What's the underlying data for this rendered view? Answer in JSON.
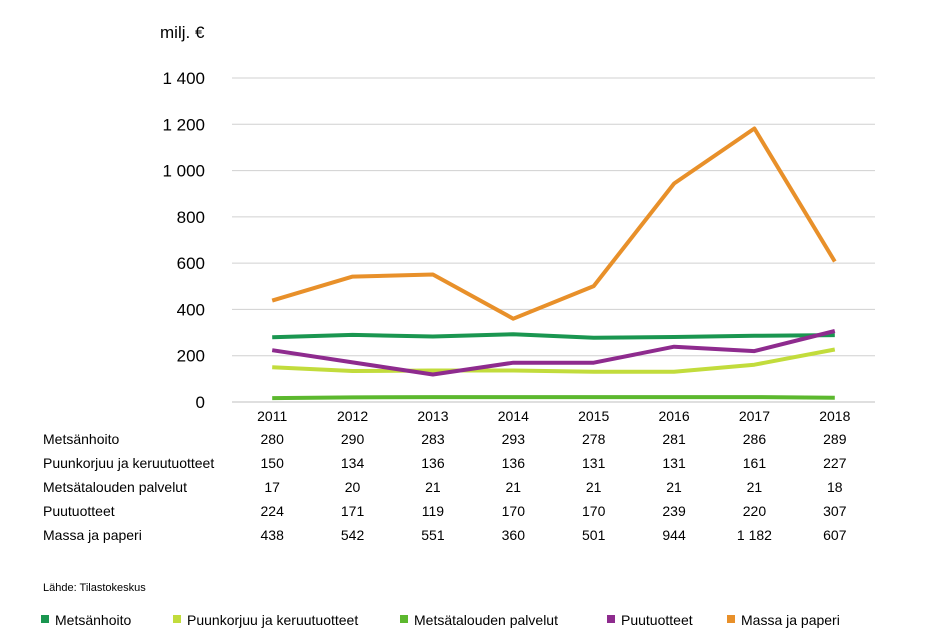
{
  "chart_data": {
    "type": "line",
    "ylabel": "milj. €",
    "ylim": [
      0,
      1400
    ],
    "yticks": [
      0,
      200,
      400,
      600,
      800,
      1000,
      1200,
      1400
    ],
    "ytick_labels": [
      "0",
      "200",
      "400",
      "600",
      "800",
      "1 000",
      "1 200",
      "1 400"
    ],
    "grid": true,
    "legend": "bottom",
    "categories": [
      "2011",
      "2012",
      "2013",
      "2014",
      "2015",
      "2016",
      "2017",
      "2018"
    ],
    "series": [
      {
        "name": "Metsänhoito",
        "color": "#1a9650",
        "values": [
          280,
          290,
          283,
          293,
          278,
          281,
          286,
          289
        ],
        "labels": [
          "280",
          "290",
          "283",
          "293",
          "278",
          "281",
          "286",
          "289"
        ]
      },
      {
        "name": "Puunkorjuu ja keruutuotteet",
        "color": "#c2dc3c",
        "values": [
          150,
          134,
          136,
          136,
          131,
          131,
          161,
          227
        ],
        "labels": [
          "150",
          "134",
          "136",
          "136",
          "131",
          "131",
          "161",
          "227"
        ]
      },
      {
        "name": "Metsätalouden palvelut",
        "color": "#5cb82e",
        "values": [
          17,
          20,
          21,
          21,
          21,
          21,
          21,
          18
        ],
        "labels": [
          "17",
          "20",
          "21",
          "21",
          "21",
          "21",
          "21",
          "18"
        ]
      },
      {
        "name": "Puutuotteet",
        "color": "#8e2b8e",
        "values": [
          224,
          171,
          119,
          170,
          170,
          239,
          220,
          307
        ],
        "labels": [
          "224",
          "171",
          "119",
          "170",
          "170",
          "239",
          "220",
          "307"
        ]
      },
      {
        "name": "Massa ja paperi",
        "color": "#e8902a",
        "values": [
          438,
          542,
          551,
          360,
          501,
          944,
          1182,
          607
        ],
        "labels": [
          "438",
          "542",
          "551",
          "360",
          "501",
          "944",
          "1 182",
          "607"
        ]
      }
    ]
  },
  "source": "Lähde: Tilastokeskus"
}
